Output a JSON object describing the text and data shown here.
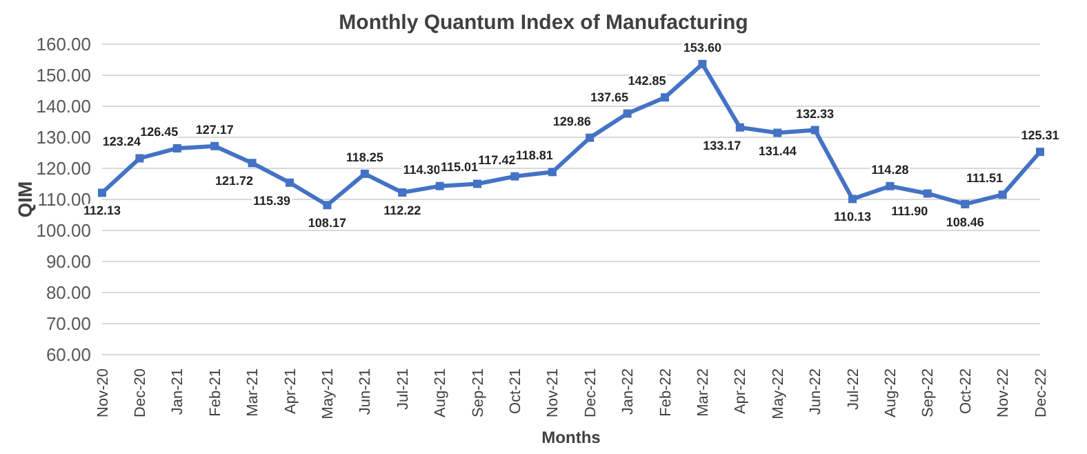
{
  "chart_data": {
    "type": "line",
    "title": "Monthly Quantum Index of Manufacturing",
    "xlabel": "Months",
    "ylabel": "QIM",
    "categories": [
      "Nov-20",
      "Dec-20",
      "Jan-21",
      "Feb-21",
      "Mar-21",
      "Apr-21",
      "May-21",
      "Jun-21",
      "Jul-21",
      "Aug-21",
      "Sep-21",
      "Oct-21",
      "Nov-21",
      "Dec-21",
      "Jan-22",
      "Feb-22",
      "Mar-22",
      "Apr-22",
      "May-22",
      "Jun-22",
      "Jul-22",
      "Aug-22",
      "Sep-22",
      "Oct-22",
      "Nov-22",
      "Dec-22"
    ],
    "series": [
      {
        "color": "#4472c4",
        "value_labels": [
          "112.13",
          "123.24",
          "126.45",
          "127.17",
          "121.72",
          "115.39",
          "108.17",
          "118.25",
          "112.22",
          "114.30",
          "115.01",
          "117.42",
          "118.81",
          "129.86",
          "137.65",
          "142.85",
          "153.60",
          "133.17",
          "131.44",
          "132.33",
          "110.13",
          "114.28",
          "111.90",
          "108.46",
          "111.51",
          "125.31"
        ],
        "values": [
          112.13,
          123.24,
          126.45,
          127.17,
          121.72,
          115.39,
          108.17,
          118.25,
          112.22,
          114.3,
          115.01,
          117.42,
          118.81,
          129.86,
          137.65,
          142.85,
          153.6,
          133.17,
          131.44,
          132.33,
          110.13,
          114.28,
          111.9,
          108.46,
          111.51,
          125.31
        ]
      }
    ],
    "ylim": [
      60,
      160
    ],
    "yticks": [
      {
        "value": 60,
        "label": "60.00"
      },
      {
        "value": 70,
        "label": "70.00"
      },
      {
        "value": 80,
        "label": "80.00"
      },
      {
        "value": 90,
        "label": "90.00"
      },
      {
        "value": 100,
        "label": "100.00"
      },
      {
        "value": 110,
        "label": "110.00"
      },
      {
        "value": 120,
        "label": "120.00"
      },
      {
        "value": 130,
        "label": "130.00"
      },
      {
        "value": 140,
        "label": "140.00"
      },
      {
        "value": 150,
        "label": "150.00"
      },
      {
        "value": 160,
        "label": "160.00"
      }
    ],
    "grid": "y",
    "marker": "square",
    "legend": false
  }
}
